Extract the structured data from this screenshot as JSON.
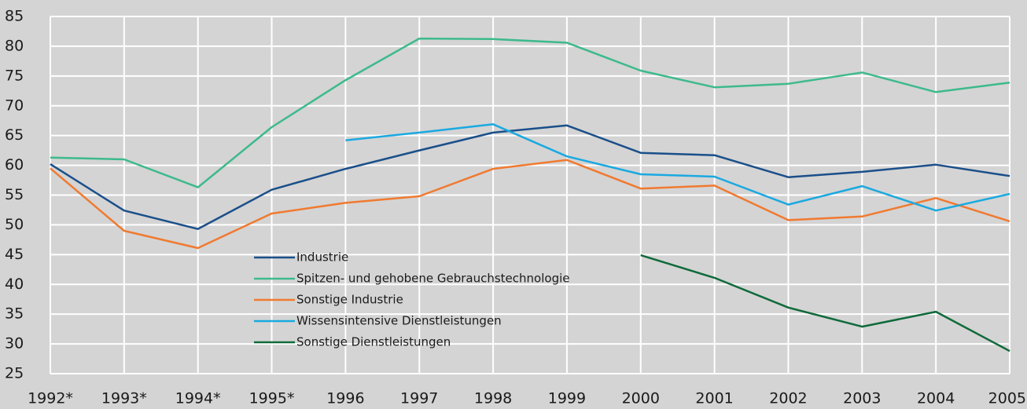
{
  "chart_data": {
    "type": "line",
    "categories": [
      "1992*",
      "1993*",
      "1994*",
      "1995*",
      "1996",
      "1997",
      "1998",
      "1999",
      "2000",
      "2001",
      "2002",
      "2003",
      "2004",
      "2005"
    ],
    "series": [
      {
        "name": "Industrie",
        "color": "#1a4f8a",
        "values": [
          60.2,
          52.4,
          49.3,
          55.9,
          59.4,
          62.5,
          65.5,
          66.7,
          62.1,
          61.7,
          58.0,
          58.9,
          60.1,
          58.2
        ]
      },
      {
        "name": "Spitzen- und gehobene Gebrauchstechnologie",
        "color": "#3dba8c",
        "values": [
          61.3,
          61.0,
          56.3,
          66.4,
          74.3,
          81.3,
          81.2,
          80.6,
          75.9,
          73.1,
          73.7,
          75.6,
          72.3,
          73.9
        ]
      },
      {
        "name": "Sonstige Industrie",
        "color": "#f07a30",
        "values": [
          59.5,
          49.0,
          46.1,
          51.9,
          53.7,
          54.8,
          59.4,
          60.9,
          56.1,
          56.6,
          50.8,
          51.4,
          54.5,
          50.6
        ]
      },
      {
        "name": "Wissensintensive Dienstleistungen",
        "color": "#1aa9e0",
        "values": [
          null,
          null,
          null,
          null,
          64.2,
          65.5,
          66.9,
          61.5,
          58.5,
          58.1,
          53.4,
          56.5,
          52.4,
          55.2
        ]
      },
      {
        "name": "Sonstige Dienstleistungen",
        "color": "#0f6a3a",
        "values": [
          null,
          null,
          null,
          null,
          null,
          null,
          null,
          null,
          44.9,
          41.1,
          36.1,
          32.9,
          35.4,
          28.8
        ]
      }
    ],
    "ylim": [
      25,
      85
    ],
    "yticks": [
      25,
      30,
      35,
      40,
      45,
      50,
      55,
      60,
      65,
      70,
      75,
      80,
      85
    ],
    "grid": true,
    "legend": "center"
  }
}
